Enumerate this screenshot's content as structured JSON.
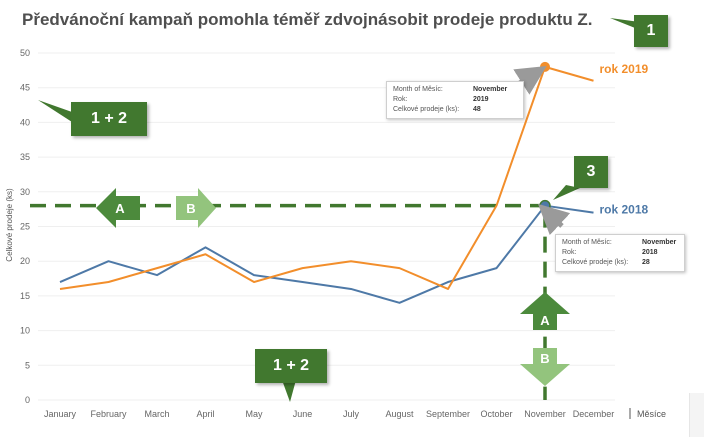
{
  "title": "Předvánoční kampaň pomohla téměř zdvojnásobit prodeje produktu Z.",
  "chart_data": {
    "type": "line",
    "categories": [
      "January",
      "February",
      "March",
      "April",
      "May",
      "June",
      "July",
      "August",
      "September",
      "October",
      "November",
      "December"
    ],
    "series": [
      {
        "name": "rok 2018",
        "color": "#4e79a7",
        "values": [
          17,
          20,
          18,
          22,
          18,
          17,
          16,
          14,
          17,
          19,
          28,
          27
        ]
      },
      {
        "name": "rok 2019",
        "color": "#f28e2b",
        "values": [
          16,
          17,
          19,
          21,
          17,
          19,
          20,
          19,
          16,
          28,
          48,
          46
        ]
      }
    ],
    "ylabel": "Celkové prodeje (ks)",
    "xlabel": "Měsíce",
    "ylim": [
      0,
      50
    ],
    "yticks": [
      0,
      5,
      10,
      15,
      20,
      25,
      30,
      35,
      40,
      45,
      50
    ],
    "reference_line": 28,
    "reference_color": "#41782f"
  },
  "tooltips": [
    {
      "rows": [
        {
          "k": "Month of Měsíc:",
          "v": "November"
        },
        {
          "k": "Rok:",
          "v": "2019"
        },
        {
          "k": "Celkové prodeje (ks):",
          "v": "48"
        }
      ]
    },
    {
      "rows": [
        {
          "k": "Month of Měsíc:",
          "v": "November"
        },
        {
          "k": "Rok:",
          "v": "2018"
        },
        {
          "k": "Celkové prodeje (ks):",
          "v": "28"
        }
      ]
    }
  ],
  "callouts": {
    "c1": "1",
    "c12_top": "1 + 2",
    "c12_bottom": "1 + 2",
    "c3": "3",
    "a": "A",
    "b": "B"
  }
}
